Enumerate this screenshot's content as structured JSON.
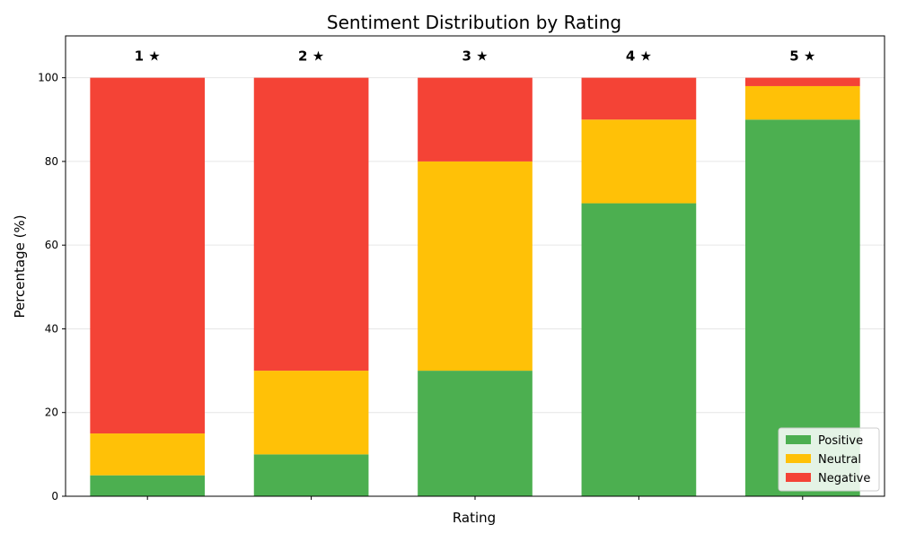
{
  "chart_data": {
    "type": "bar",
    "stacked": true,
    "title": "Sentiment Distribution by Rating",
    "xlabel": "Rating",
    "ylabel": "Percentage (%)",
    "categories": [
      "1 ★",
      "2 ★",
      "3 ★",
      "4 ★",
      "5 ★"
    ],
    "series": [
      {
        "name": "Positive",
        "color": "#4caf50",
        "values": [
          5,
          10,
          30,
          70,
          90
        ]
      },
      {
        "name": "Neutral",
        "color": "#ffc107",
        "values": [
          10,
          20,
          50,
          20,
          8
        ]
      },
      {
        "name": "Negative",
        "color": "#f44336",
        "values": [
          85,
          70,
          20,
          10,
          2
        ]
      }
    ],
    "ylim": [
      0,
      110
    ],
    "yticks": [
      0,
      20,
      40,
      60,
      80,
      100
    ],
    "grid": "y",
    "legend_position": "lower-right"
  }
}
